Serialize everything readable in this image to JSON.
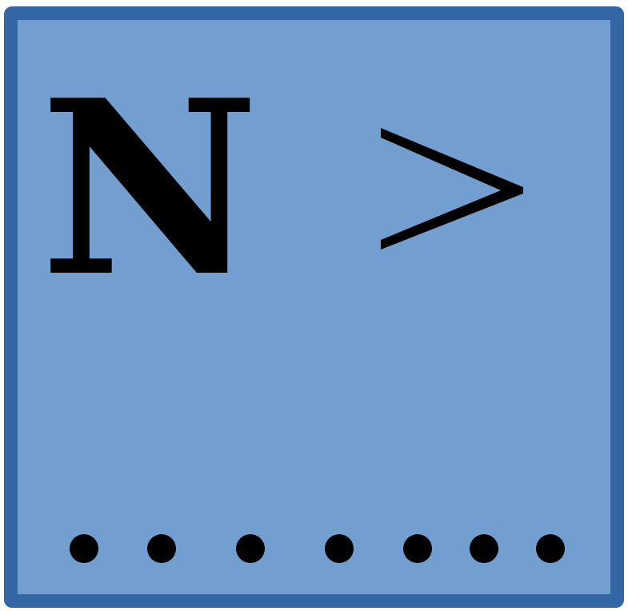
{
  "symbol": {
    "letter": "N",
    "operator_icon": "greater-than-icon"
  },
  "dots": {
    "count": 7,
    "icon": "dot-icon"
  },
  "colors": {
    "fill": "#729fcf",
    "border": "#3465a4",
    "glyph": "#000000"
  }
}
